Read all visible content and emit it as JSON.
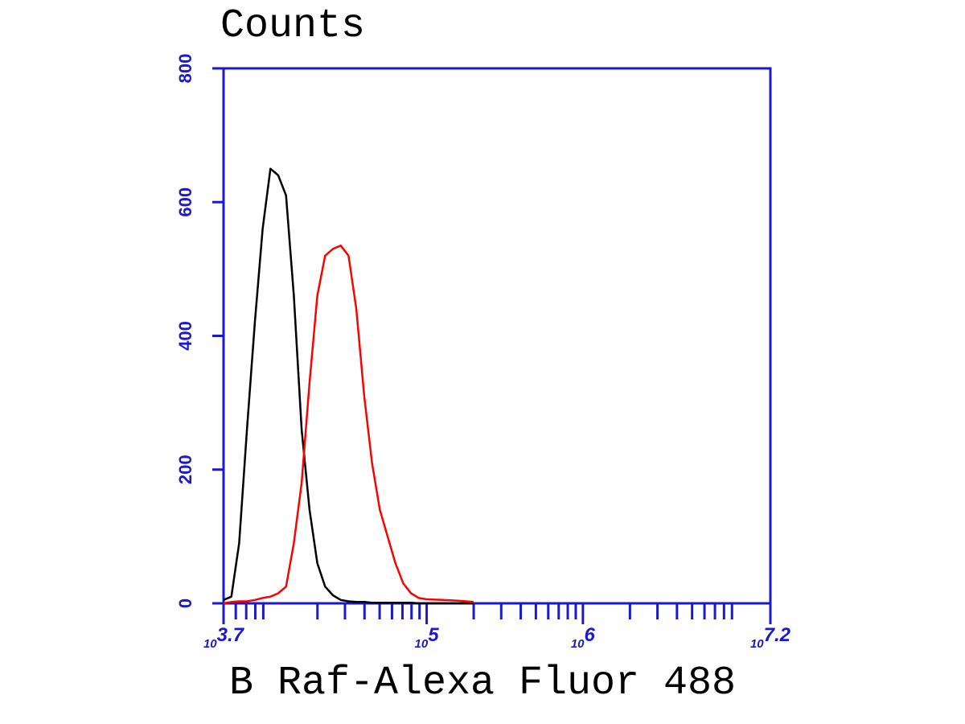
{
  "chart_data": {
    "type": "line",
    "y_label": "Counts",
    "x_label": "B Raf-Alexa Fluor 488",
    "x_scale": "log",
    "axis_color": "#1a1acc",
    "xlim": [
      5011.87,
      15848932
    ],
    "ylim": [
      0,
      800
    ],
    "yticks": [
      0,
      200,
      400,
      600,
      800
    ],
    "xticks": [
      {
        "value": 5011.87,
        "label": "103.7"
      },
      {
        "value": 100000,
        "label": "105"
      },
      {
        "value": 1000000,
        "label": "106"
      },
      {
        "value": 15848932,
        "label": "107.2"
      }
    ],
    "xminor_ticks": [
      6000,
      7000,
      8000,
      9000,
      20000,
      30000,
      40000,
      50000,
      60000,
      70000,
      80000,
      90000,
      200000,
      300000,
      400000,
      500000,
      600000,
      700000,
      800000,
      900000,
      2000000,
      3000000,
      4000000,
      5000000,
      6000000,
      7000000,
      8000000,
      9000000
    ],
    "x": [
      5012,
      5623,
      6310,
      7079,
      7943,
      8913,
      10000,
      11220,
      12589,
      14125,
      15849,
      17783,
      19953,
      22387,
      25119,
      28184,
      31623,
      35481,
      39811,
      44668,
      50119,
      56234,
      63096,
      70795,
      79433,
      89125,
      100000,
      125893,
      158489,
      199526
    ],
    "series": [
      {
        "color": "#000000",
        "values": [
          5,
          10,
          90,
          260,
          420,
          560,
          650,
          640,
          610,
          460,
          260,
          140,
          60,
          25,
          12,
          5,
          3,
          2,
          2,
          1,
          1,
          1,
          1,
          1,
          1,
          0,
          0,
          0,
          0,
          0
        ]
      },
      {
        "color": "#ff0000",
        "values": [
          0,
          2,
          3,
          3,
          5,
          8,
          10,
          15,
          25,
          90,
          180,
          330,
          460,
          520,
          530,
          535,
          520,
          440,
          310,
          210,
          140,
          100,
          60,
          30,
          15,
          8,
          6,
          5,
          4,
          2
        ]
      }
    ]
  }
}
